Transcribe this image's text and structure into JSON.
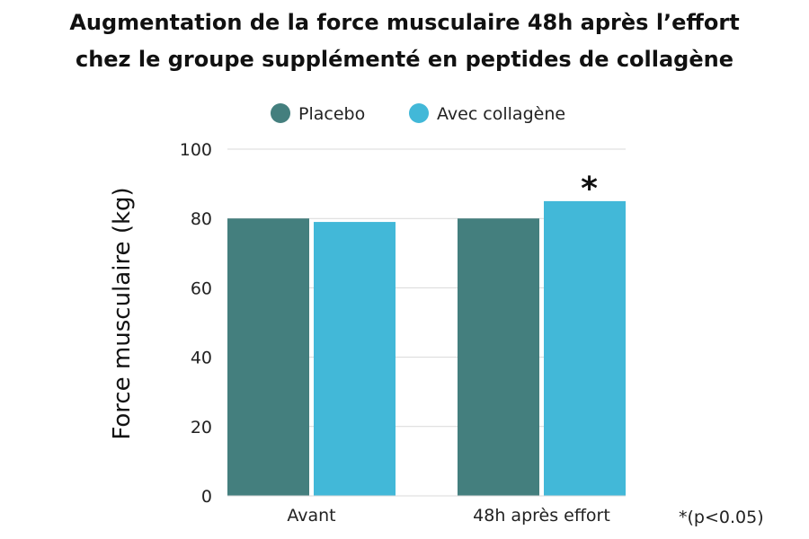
{
  "chart_data": {
    "type": "bar",
    "title": [
      "Augmentation de la force musculaire 48h après l’effort",
      "chez le groupe supplémenté en peptides de collagène"
    ],
    "categories": [
      "Avant",
      "48h après effort"
    ],
    "series": [
      {
        "name": "Placebo",
        "values": [
          80,
          80
        ],
        "color": "#447f7e"
      },
      {
        "name": "Avec collagène",
        "values": [
          79,
          85
        ],
        "color": "#42b8d8"
      }
    ],
    "xlabel": "",
    "ylabel": "Force musculaire (kg)",
    "ylim": [
      0,
      100
    ],
    "yticks": [
      0,
      20,
      40,
      60,
      80,
      100
    ],
    "grid": true,
    "legend_position": "top-center",
    "annotation": {
      "text": "*",
      "category": "48h après effort",
      "series": "Avec collagène"
    },
    "footnote": "*(p<0.05)"
  }
}
